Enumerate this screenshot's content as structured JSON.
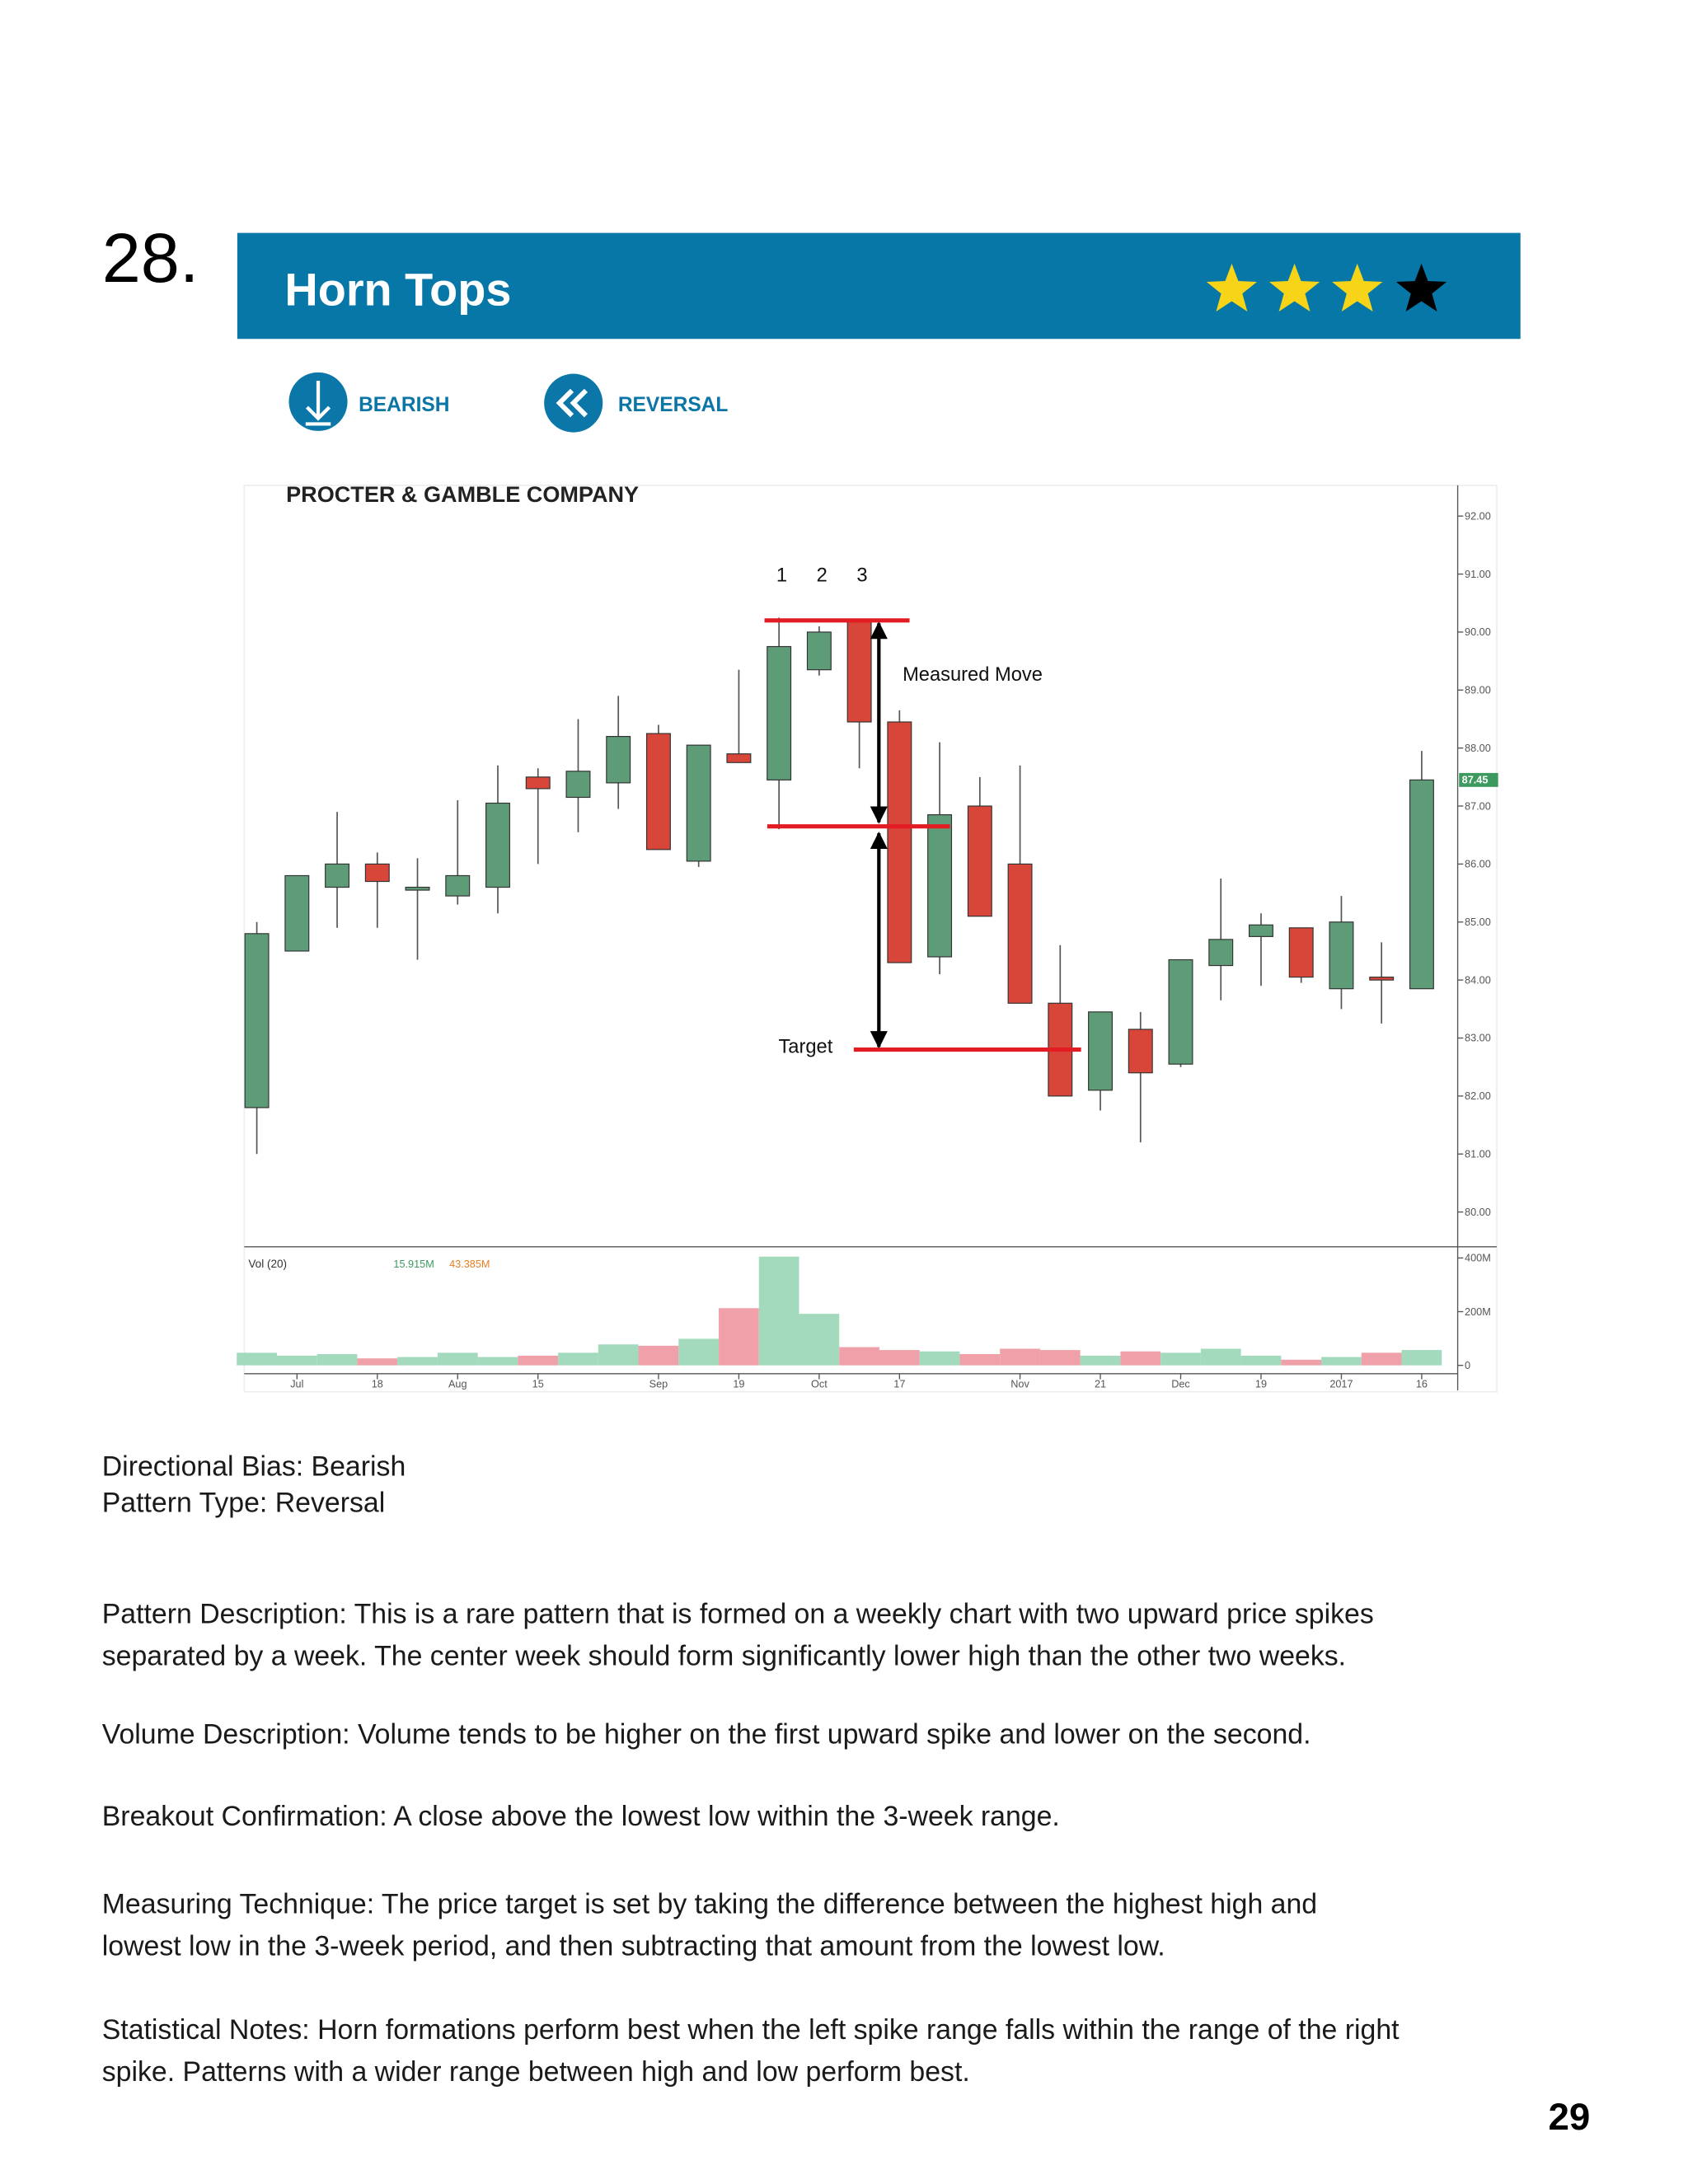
{
  "page_number_label": "28.",
  "header": {
    "title": "Horn Tops",
    "tags": [
      "BEARISH",
      "REVERSAL"
    ]
  },
  "chart_data": {
    "type": "candlestick",
    "title": "PROCTER & GAMBLE COMPANY",
    "categories": [
      null,
      "Jul",
      null,
      "18",
      null,
      "Aug",
      null,
      "15",
      null,
      null,
      "Sep",
      null,
      "19",
      null,
      "Oct",
      null,
      "17",
      null,
      null,
      "Nov",
      null,
      "21",
      null,
      "Dec",
      null,
      "19",
      null,
      "2017",
      null,
      "16"
    ],
    "open": [
      81.8,
      84.5,
      85.6,
      86.0,
      85.55,
      85.45,
      85.6,
      87.5,
      87.15,
      87.4,
      88.25,
      86.05,
      87.9,
      87.45,
      89.35,
      90.2,
      88.45,
      84.4,
      87.0,
      86.0,
      83.6,
      82.1,
      83.15,
      82.55,
      84.25,
      84.75,
      84.9,
      83.85,
      84.05,
      83.85
    ],
    "high": [
      85.0,
      85.8,
      86.9,
      86.2,
      86.1,
      87.1,
      87.7,
      87.65,
      88.5,
      88.9,
      88.4,
      88.05,
      89.35,
      90.25,
      90.1,
      90.2,
      88.65,
      88.1,
      87.5,
      87.7,
      84.6,
      83.45,
      83.45,
      84.35,
      85.75,
      85.15,
      84.9,
      85.45,
      84.65,
      87.95
    ],
    "low": [
      81.0,
      84.5,
      84.9,
      84.9,
      84.35,
      85.3,
      85.15,
      86.0,
      86.55,
      86.95,
      86.25,
      85.95,
      87.75,
      86.6,
      89.25,
      87.65,
      84.3,
      84.1,
      85.1,
      83.6,
      82.0,
      81.75,
      81.2,
      82.5,
      83.65,
      83.9,
      83.95,
      83.5,
      83.25,
      83.85
    ],
    "close": [
      84.8,
      85.8,
      86.0,
      85.7,
      85.6,
      85.8,
      87.05,
      87.3,
      87.6,
      88.2,
      86.25,
      88.05,
      87.75,
      89.75,
      90.0,
      88.45,
      84.3,
      86.85,
      85.1,
      83.6,
      82.0,
      83.45,
      82.4,
      84.35,
      84.7,
      84.95,
      84.05,
      85.0,
      84.0,
      87.45
    ],
    "up_color": "#5e9c78",
    "down_color": "#d8463a",
    "ylim": [
      79.4,
      92.53
    ],
    "yticks": [
      {
        "value": 80,
        "label": "80.00"
      },
      {
        "value": 81,
        "label": "81.00"
      },
      {
        "value": 82,
        "label": "82.00"
      },
      {
        "value": 83,
        "label": "83.00"
      },
      {
        "value": 84,
        "label": "84.00"
      },
      {
        "value": 85,
        "label": "85.00"
      },
      {
        "value": 86,
        "label": "86.00"
      },
      {
        "value": 87,
        "label": "87.00"
      },
      {
        "value": 88,
        "label": "88.00"
      },
      {
        "value": 89,
        "label": "89.00"
      },
      {
        "value": 90,
        "label": "90.00"
      },
      {
        "value": 91,
        "label": "91.00"
      },
      {
        "value": 92,
        "label": "92.00"
      }
    ],
    "last_price_label": {
      "value": 87.45,
      "label": "87.45"
    },
    "volume": {
      "title": "Vol (20)",
      "legend_values": [
        "15.915M",
        "43.385M"
      ],
      "values": [
        47,
        36,
        42,
        26,
        31,
        47,
        31,
        36,
        47,
        78,
        73,
        99,
        213,
        405,
        192,
        68,
        57,
        52,
        42,
        62,
        57,
        36,
        52,
        47,
        62,
        36,
        21,
        31,
        47,
        57
      ],
      "up_color": "#a3d9bd",
      "down_color": "#f0a0a8",
      "ylim": [
        0,
        441.6
      ],
      "yticks": [
        0,
        {
          "value": 200,
          "label": "200M"
        },
        {
          "value": 400,
          "label": "400M"
        }
      ]
    },
    "annotations": {
      "week_labels": [
        "1",
        "2",
        "3"
      ],
      "measured_move": "Measured Move",
      "target": "Target",
      "levels": [
        90.2,
        86.65,
        82.8
      ],
      "level_color": "#e31b23"
    }
  },
  "text": {
    "bias": "Directional Bias: Bearish",
    "pattern_type": "Pattern Type: Reversal",
    "paragraphs": [
      [
        "Pattern Description: This is a rare pattern that is formed on a weekly chart with two upward price spikes",
        "separated by a week. The center week should form significantly lower high than the other two weeks."
      ],
      [
        "Volume Description: Volume tends to be higher on the first upward spike and lower on the second."
      ],
      [
        "Breakout Confirmation: A close above the lowest low within the 3-week range."
      ],
      [
        "Measuring Technique: The price target is set by taking the difference between the highest high and",
        "lowest low in the 3-week period, and then subtracting that amount from the lowest low."
      ],
      [
        "Statistical Notes: Horn formations perform best when the left spike range falls within the range of the right",
        "spike. Patterns with a wider range between high and low perform best."
      ]
    ]
  },
  "page_number": "29"
}
